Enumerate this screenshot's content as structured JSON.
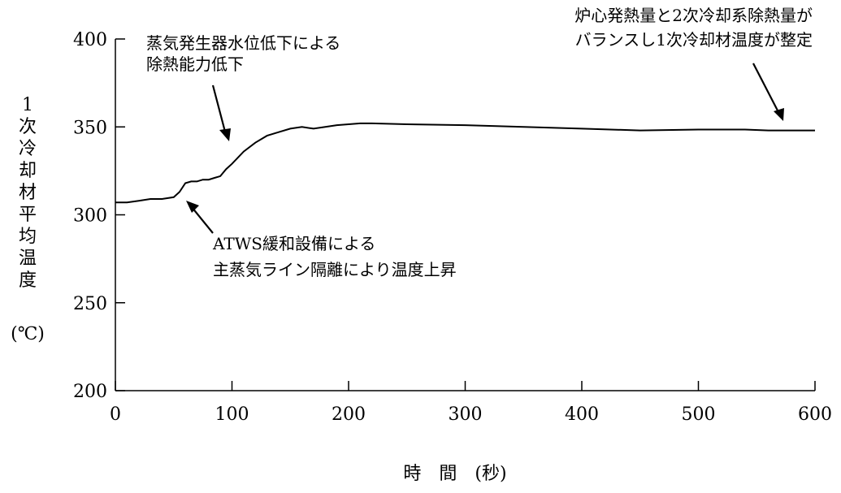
{
  "chart_data": {
    "type": "line",
    "xlabel": "時　間　(秒)",
    "ylabel": "1次冷却材平均温度",
    "ylabel_unit": "(℃)",
    "xlim": [
      0,
      600
    ],
    "ylim": [
      200,
      400
    ],
    "xticks": [
      0,
      100,
      200,
      300,
      400,
      500,
      600
    ],
    "yticks": [
      200,
      250,
      300,
      350,
      400
    ],
    "grid": false,
    "series": [
      {
        "x": [
          0,
          10,
          20,
          30,
          40,
          50,
          55,
          60,
          65,
          70,
          75,
          80,
          85,
          90,
          95,
          100,
          110,
          120,
          130,
          140,
          150,
          160,
          170,
          180,
          190,
          200,
          210,
          220,
          250,
          300,
          350,
          400,
          450,
          500,
          540,
          560,
          600
        ],
        "y": [
          307,
          307,
          308,
          309,
          309,
          310,
          313,
          318,
          319,
          319,
          320,
          320,
          321,
          322,
          326,
          329,
          336,
          341,
          345,
          347,
          349,
          350,
          349,
          350,
          351,
          351.5,
          352,
          352,
          351.5,
          351,
          350,
          349,
          348,
          348.5,
          348.5,
          348,
          348
        ]
      }
    ],
    "annotations": [
      {
        "id": "sg",
        "lines": [
          "蒸気発生器水位低下による",
          "除熱能力低下"
        ],
        "arrow_x": 95,
        "arrow_y": 328
      },
      {
        "id": "atws",
        "lines": [
          "ATWS緩和設備による",
          "主蒸気ライン隔離により温度上昇"
        ],
        "arrow_x": 62,
        "arrow_y": 310
      },
      {
        "id": "balance",
        "lines": [
          "炉心発熱量と2次冷却系除熱量が",
          "バランスし1次冷却材温度が整定"
        ],
        "arrow_x": 575,
        "arrow_y": 352
      }
    ]
  }
}
